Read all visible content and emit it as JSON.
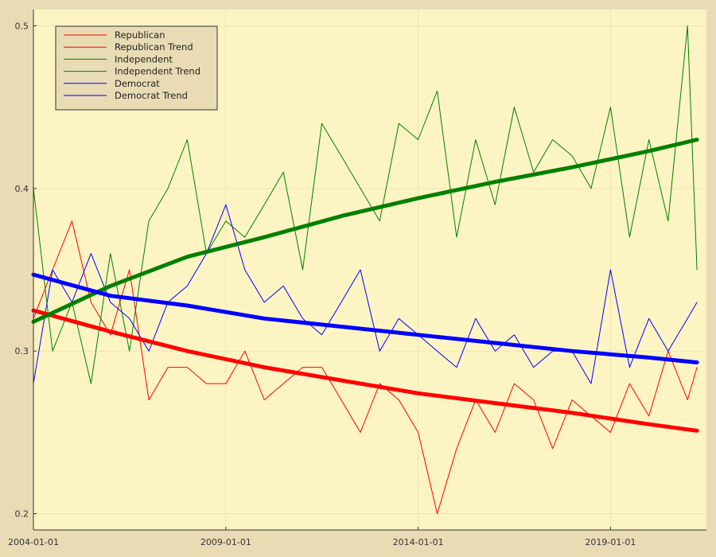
{
  "chart_data": {
    "type": "line",
    "title": "",
    "xlabel": "",
    "ylabel": "",
    "xlim": [
      "2004-01-01",
      "2021-06-30"
    ],
    "ylim": [
      0.19,
      0.51
    ],
    "x_ticks": [
      "2004-01-01",
      "2009-01-01",
      "2014-01-01",
      "2019-01-01"
    ],
    "y_ticks": [
      0.2,
      0.3,
      0.4,
      0.5
    ],
    "grid": true,
    "legend_position": "top-left",
    "colors": {
      "plot_bg": "#fdf4c3",
      "page_bg": "#e9dcb5",
      "legend_bg": "#e9dcb5"
    },
    "series": [
      {
        "name": "Republican",
        "color": "#ff0000",
        "width": 1,
        "x": [
          "2004-01-01",
          "2004-07-01",
          "2005-01-01",
          "2005-07-01",
          "2006-01-01",
          "2006-07-01",
          "2007-01-01",
          "2007-07-01",
          "2008-01-01",
          "2008-07-01",
          "2009-01-01",
          "2009-07-01",
          "2010-01-01",
          "2010-07-01",
          "2011-01-01",
          "2011-07-01",
          "2012-01-01",
          "2012-07-01",
          "2013-01-01",
          "2013-07-01",
          "2014-01-01",
          "2014-07-01",
          "2015-01-01",
          "2015-07-01",
          "2016-01-01",
          "2016-07-01",
          "2017-01-01",
          "2017-07-01",
          "2018-01-01",
          "2018-07-01",
          "2019-01-01",
          "2019-07-01",
          "2020-01-01",
          "2020-07-01",
          "2021-01-01",
          "2021-04-01"
        ],
        "values": [
          0.32,
          0.35,
          0.38,
          0.33,
          0.31,
          0.35,
          0.27,
          0.29,
          0.29,
          0.28,
          0.28,
          0.3,
          0.27,
          0.28,
          0.29,
          0.29,
          0.27,
          0.25,
          0.28,
          0.27,
          0.25,
          0.2,
          0.24,
          0.27,
          0.25,
          0.28,
          0.27,
          0.24,
          0.27,
          0.26,
          0.25,
          0.28,
          0.26,
          0.3,
          0.27,
          0.29
        ]
      },
      {
        "name": "Republican Trend",
        "color": "#ff0000",
        "width": 5,
        "x": [
          "2004-01-01",
          "2006-01-01",
          "2008-01-01",
          "2010-01-01",
          "2012-01-01",
          "2014-01-01",
          "2016-01-01",
          "2018-01-01",
          "2020-01-01",
          "2021-04-01"
        ],
        "values": [
          0.325,
          0.312,
          0.3,
          0.29,
          0.282,
          0.274,
          0.268,
          0.262,
          0.255,
          0.251
        ]
      },
      {
        "name": "Independent",
        "color": "#008000",
        "width": 1,
        "x": [
          "2004-01-01",
          "2004-07-01",
          "2005-01-01",
          "2005-07-01",
          "2006-01-01",
          "2006-07-01",
          "2007-01-01",
          "2007-07-01",
          "2008-01-01",
          "2008-07-01",
          "2009-01-01",
          "2009-07-01",
          "2010-01-01",
          "2010-07-01",
          "2011-01-01",
          "2011-07-01",
          "2012-01-01",
          "2012-07-01",
          "2013-01-01",
          "2013-07-01",
          "2014-01-01",
          "2014-07-01",
          "2015-01-01",
          "2015-07-01",
          "2016-01-01",
          "2016-07-01",
          "2017-01-01",
          "2017-07-01",
          "2018-01-01",
          "2018-07-01",
          "2019-01-01",
          "2019-07-01",
          "2020-01-01",
          "2020-07-01",
          "2021-01-01",
          "2021-04-01"
        ],
        "values": [
          0.4,
          0.3,
          0.33,
          0.28,
          0.36,
          0.3,
          0.38,
          0.4,
          0.43,
          0.36,
          0.38,
          0.37,
          0.39,
          0.41,
          0.35,
          0.44,
          0.42,
          0.4,
          0.38,
          0.44,
          0.43,
          0.46,
          0.37,
          0.43,
          0.39,
          0.45,
          0.41,
          0.43,
          0.42,
          0.4,
          0.45,
          0.37,
          0.43,
          0.38,
          0.5,
          0.35
        ]
      },
      {
        "name": "Independent Trend",
        "color": "#008000",
        "width": 5,
        "x": [
          "2004-01-01",
          "2006-01-01",
          "2008-01-01",
          "2010-01-01",
          "2012-01-01",
          "2014-01-01",
          "2016-01-01",
          "2018-01-01",
          "2020-01-01",
          "2021-04-01"
        ],
        "values": [
          0.318,
          0.34,
          0.358,
          0.37,
          0.383,
          0.394,
          0.404,
          0.413,
          0.423,
          0.43
        ]
      },
      {
        "name": "Democrat",
        "color": "#0000ff",
        "width": 1,
        "x": [
          "2004-01-01",
          "2004-07-01",
          "2005-01-01",
          "2005-07-01",
          "2006-01-01",
          "2006-07-01",
          "2007-01-01",
          "2007-07-01",
          "2008-01-01",
          "2008-07-01",
          "2009-01-01",
          "2009-07-01",
          "2010-01-01",
          "2010-07-01",
          "2011-01-01",
          "2011-07-01",
          "2012-01-01",
          "2012-07-01",
          "2013-01-01",
          "2013-07-01",
          "2014-01-01",
          "2014-07-01",
          "2015-01-01",
          "2015-07-01",
          "2016-01-01",
          "2016-07-01",
          "2017-01-01",
          "2017-07-01",
          "2018-01-01",
          "2018-07-01",
          "2019-01-01",
          "2019-07-01",
          "2020-01-01",
          "2020-07-01",
          "2021-01-01",
          "2021-04-01"
        ],
        "values": [
          0.28,
          0.35,
          0.33,
          0.36,
          0.33,
          0.32,
          0.3,
          0.33,
          0.34,
          0.36,
          0.39,
          0.35,
          0.33,
          0.34,
          0.32,
          0.31,
          0.33,
          0.35,
          0.3,
          0.32,
          0.31,
          0.3,
          0.29,
          0.32,
          0.3,
          0.31,
          0.29,
          0.3,
          0.3,
          0.28,
          0.35,
          0.29,
          0.32,
          0.3,
          0.32,
          0.33
        ]
      },
      {
        "name": "Democrat Trend",
        "color": "#0000ff",
        "width": 5,
        "x": [
          "2004-01-01",
          "2006-01-01",
          "2008-01-01",
          "2010-01-01",
          "2012-01-01",
          "2014-01-01",
          "2016-01-01",
          "2018-01-01",
          "2020-01-01",
          "2021-04-01"
        ],
        "values": [
          0.347,
          0.334,
          0.328,
          0.32,
          0.315,
          0.31,
          0.305,
          0.3,
          0.296,
          0.293
        ]
      }
    ]
  }
}
